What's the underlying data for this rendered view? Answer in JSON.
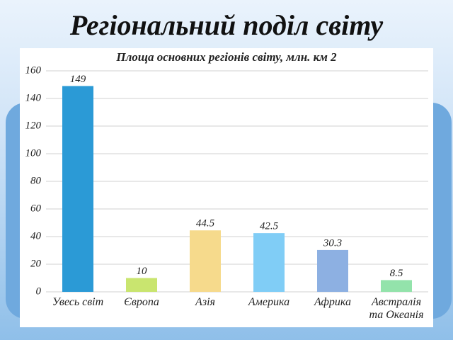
{
  "page_title": "Регіональний поділ світу",
  "chart_data": {
    "type": "bar",
    "title": "Площа основних регіонів світу, млн. км 2",
    "categories": [
      "Увесь світ",
      "Європа",
      "Азія",
      "Америка",
      "Африка",
      "Австралія та Океанія"
    ],
    "values": [
      149,
      10,
      44.5,
      42.5,
      30.3,
      8.5
    ],
    "colors": [
      "#2b9ad6",
      "#c9e56f",
      "#f6da8c",
      "#80cdf6",
      "#8db0e2",
      "#93e3ab"
    ],
    "ylim": [
      0,
      160
    ],
    "yticks": [
      0,
      20,
      40,
      60,
      80,
      100,
      120,
      140,
      160
    ],
    "grid": true
  }
}
